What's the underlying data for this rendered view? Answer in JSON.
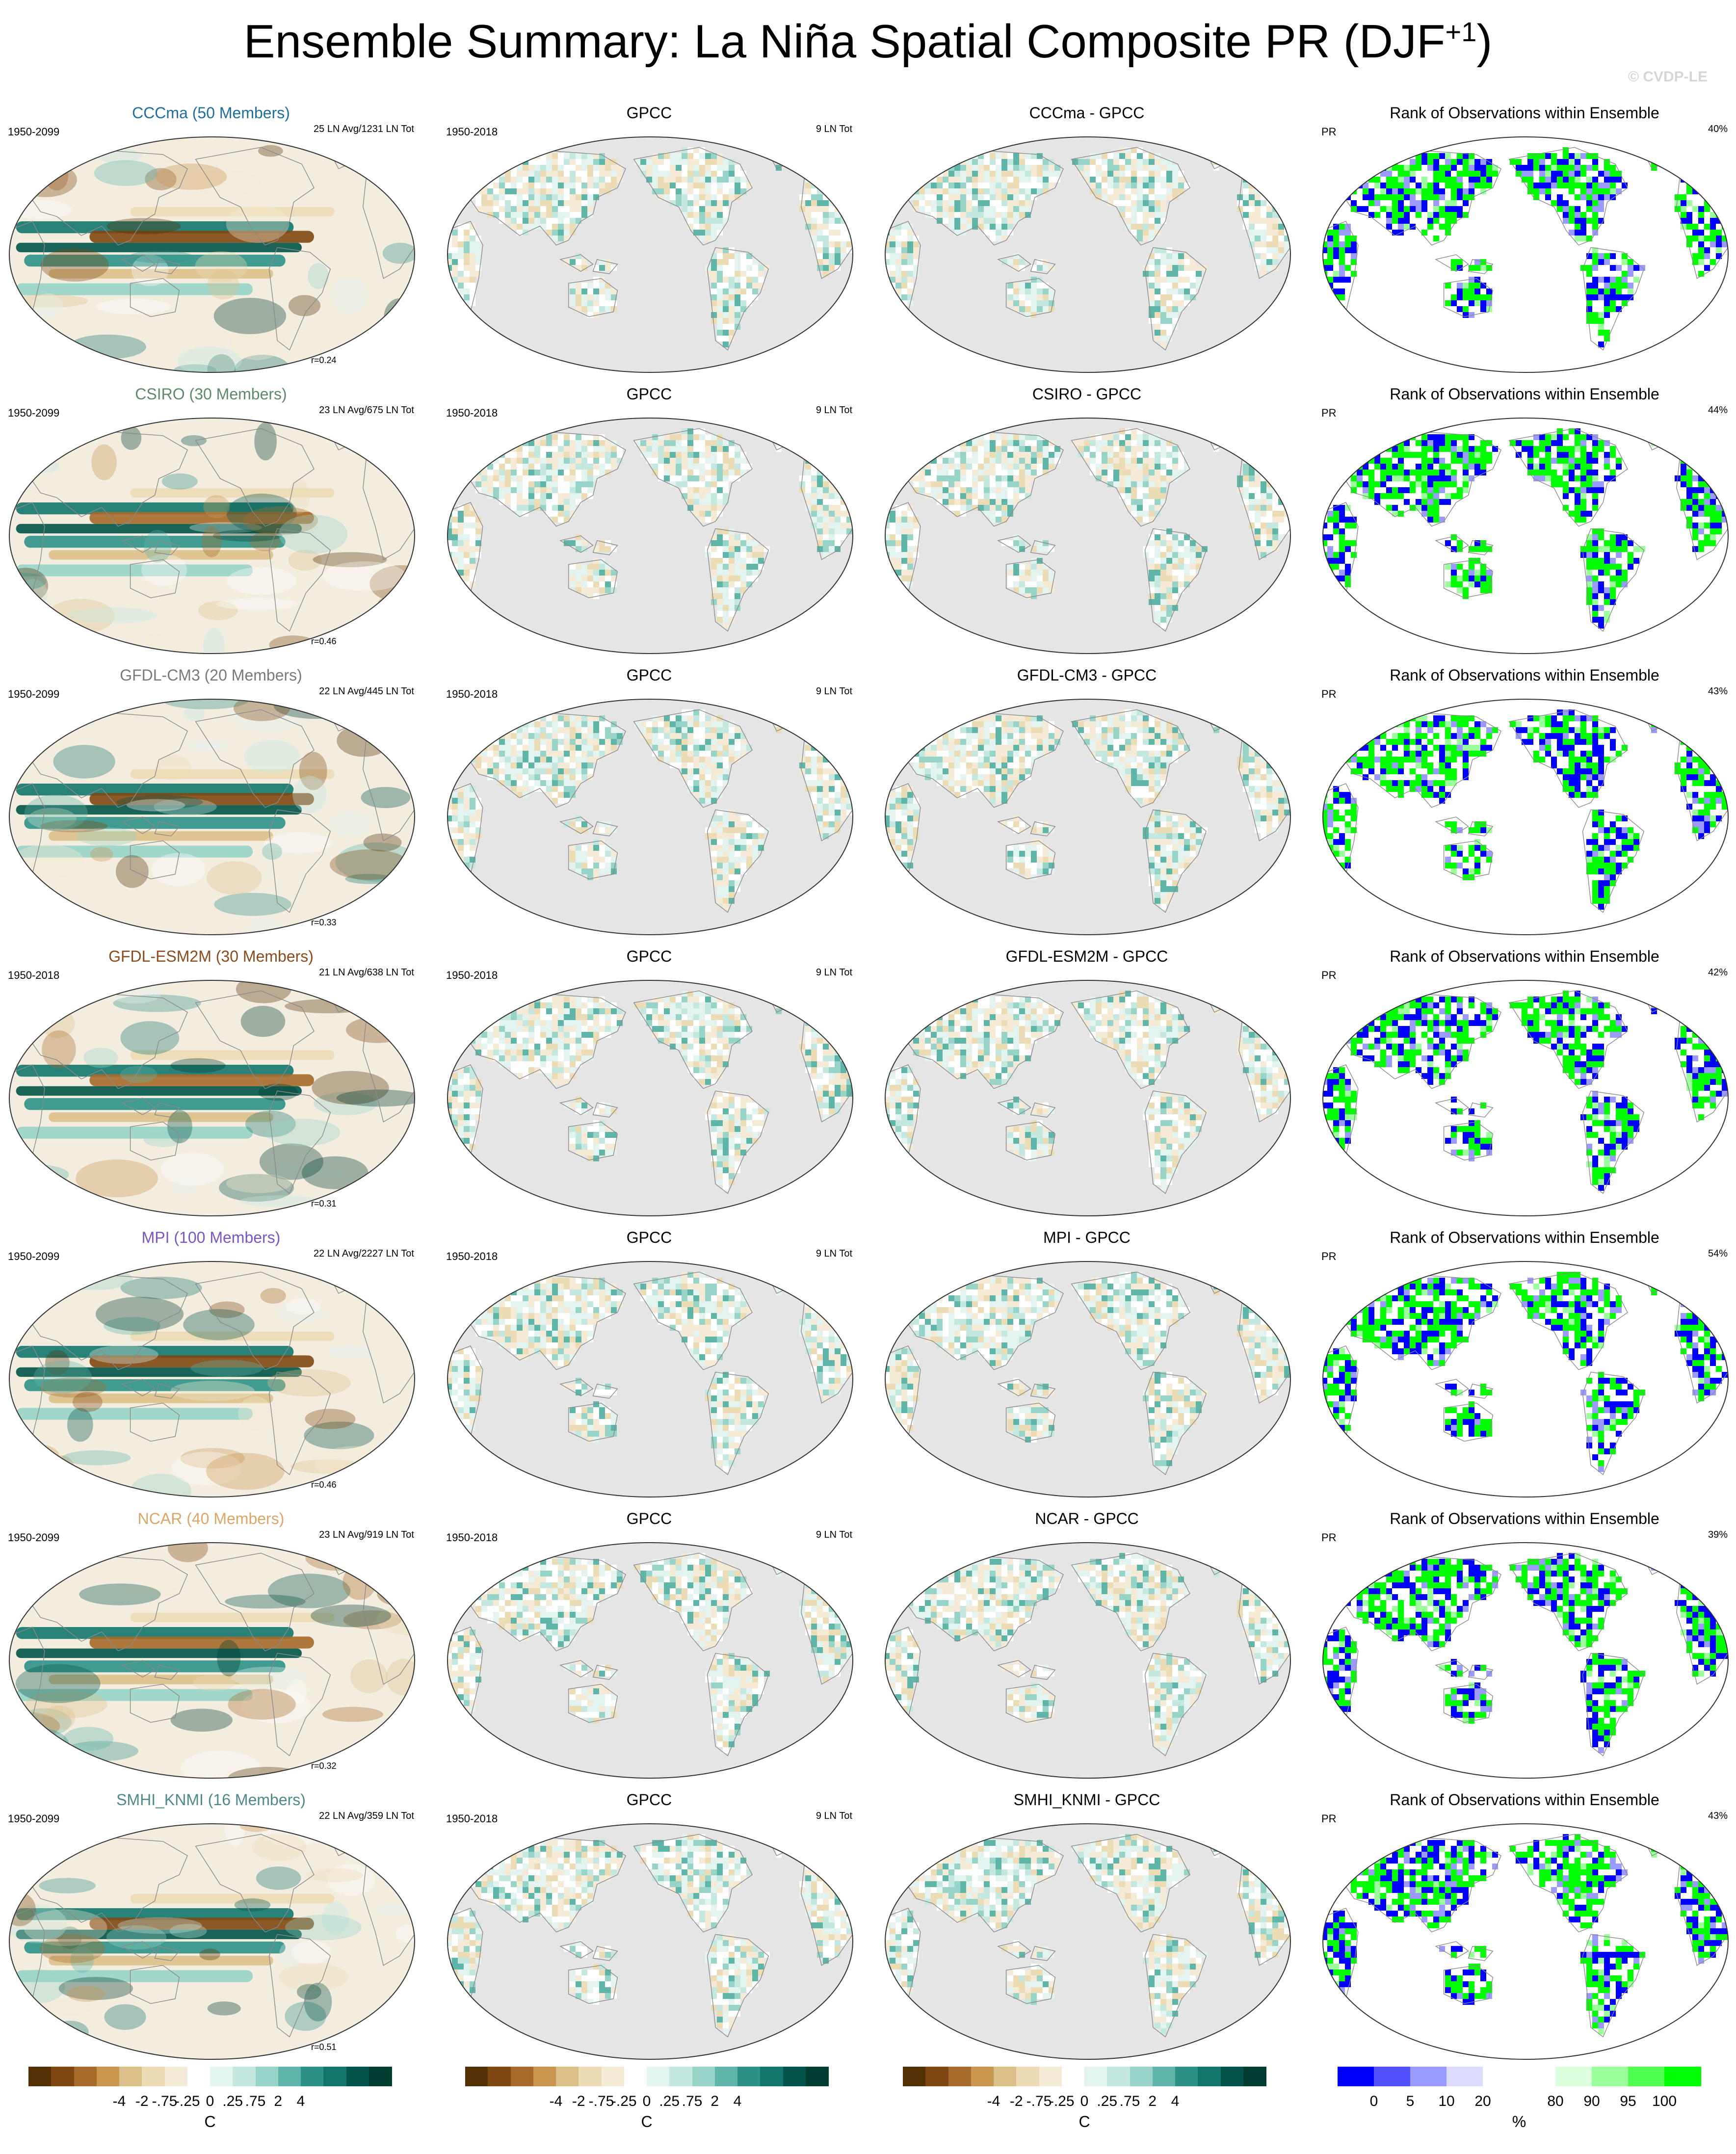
{
  "title": {
    "main": "Ensemble Summary: La Niña Spatial Composite PR (DJF",
    "sup": "+1",
    "close": ")"
  },
  "watermark": "© CVDP-LE",
  "colors": {
    "ocean_gray": "#e5e5e5",
    "land_bg": "#f3eddf",
    "rank_low": "#0000ff",
    "rank_high": "#00ff00",
    "diverging": [
      "#543005",
      "#7f4712",
      "#a66a2a",
      "#c99650",
      "#dcc08a",
      "#ecdcb5",
      "#f5ead5",
      "#ffffff",
      "#e3f3ef",
      "#c4e8e0",
      "#98d3c8",
      "#5fb5a8",
      "#2e9187",
      "#13766c",
      "#025348",
      "#003c30"
    ],
    "rank_scale": [
      "#0000ff",
      "#5050ff",
      "#9b9bff",
      "#dcdcff",
      "#ffffff",
      "#ffffff",
      "#dcffdc",
      "#9bff9b",
      "#50ff50",
      "#00ff00"
    ]
  },
  "rows": [
    {
      "model": "CCCma (50 Members)",
      "model_color": "#1f6e9b",
      "period": "1950-2099",
      "events": "25 LN Avg/1231 LN Tot",
      "r": "r=0.24",
      "obs_title": "GPCC",
      "obs_period": "1950-2018",
      "obs_events": "9 LN Tot",
      "diff_title": "CCCma - GPCC",
      "rank_title": "Rank of Observations within Ensemble",
      "rank_var": "PR",
      "rank_pct": "40%"
    },
    {
      "model": "CSIRO (30 Members)",
      "model_color": "#5e8a6a",
      "period": "1950-2099",
      "events": "23 LN Avg/675 LN Tot",
      "r": "r=0.46",
      "obs_title": "GPCC",
      "obs_period": "1950-2018",
      "obs_events": "9 LN Tot",
      "diff_title": "CSIRO - GPCC",
      "rank_title": "Rank of Observations within Ensemble",
      "rank_var": "PR",
      "rank_pct": "44%"
    },
    {
      "model": "GFDL-CM3 (20 Members)",
      "model_color": "#7a7a7a",
      "period": "1950-2099",
      "events": "22 LN Avg/445 LN Tot",
      "r": "r=0.33",
      "obs_title": "GPCC",
      "obs_period": "1950-2018",
      "obs_events": "9 LN Tot",
      "diff_title": "GFDL-CM3 - GPCC",
      "rank_title": "Rank of Observations within Ensemble",
      "rank_var": "PR",
      "rank_pct": "43%"
    },
    {
      "model": "GFDL-ESM2M (30 Members)",
      "model_color": "#8a4b1e",
      "period": "1950-2018",
      "events": "21 LN Avg/638 LN Tot",
      "r": "r=0.31",
      "obs_title": "GPCC",
      "obs_period": "1950-2018",
      "obs_events": "9 LN Tot",
      "diff_title": "GFDL-ESM2M - GPCC",
      "rank_title": "Rank of Observations within Ensemble",
      "rank_var": "PR",
      "rank_pct": "42%"
    },
    {
      "model": "MPI (100 Members)",
      "model_color": "#7a56c4",
      "period": "1950-2099",
      "events": "22 LN Avg/2227 LN Tot",
      "r": "r=0.46",
      "obs_title": "GPCC",
      "obs_period": "1950-2018",
      "obs_events": "9 LN Tot",
      "diff_title": "MPI - GPCC",
      "rank_title": "Rank of Observations within Ensemble",
      "rank_var": "PR",
      "rank_pct": "54%"
    },
    {
      "model": "NCAR (40 Members)",
      "model_color": "#d9a76a",
      "period": "1950-2099",
      "events": "23 LN Avg/919 LN Tot",
      "r": "r=0.32",
      "obs_title": "GPCC",
      "obs_period": "1950-2018",
      "obs_events": "9 LN Tot",
      "diff_title": "NCAR - GPCC",
      "rank_title": "Rank of Observations within Ensemble",
      "rank_var": "PR",
      "rank_pct": "39%"
    },
    {
      "model": "SMHI_KNMI (16 Members)",
      "model_color": "#4f8a8a",
      "period": "1950-2099",
      "events": "22 LN Avg/359 LN Tot",
      "r": "r=0.51",
      "obs_title": "GPCC",
      "obs_period": "1950-2018",
      "obs_events": "9 LN Tot",
      "diff_title": "SMHI_KNMI - GPCC",
      "rank_title": "Rank of Observations within Ensemble",
      "rank_var": "PR",
      "rank_pct": "43%"
    }
  ],
  "colorbars": {
    "div_ticks": [
      "-4",
      "-2",
      "-.75",
      "-.25",
      "0",
      ".25",
      ".75",
      "2",
      "4"
    ],
    "div_unit": "C",
    "rank_ticks": [
      "0",
      "5",
      "10",
      "20",
      "80",
      "90",
      "95",
      "100"
    ],
    "rank_unit": "%"
  }
}
